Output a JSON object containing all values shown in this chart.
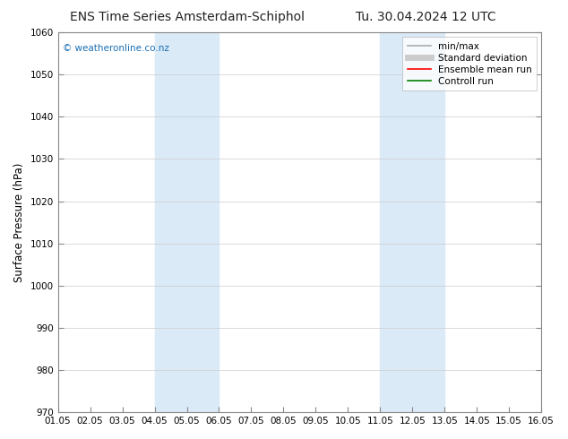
{
  "title_left": "ENS Time Series Amsterdam-Schiphol",
  "title_right": "Tu. 30.04.2024 12 UTC",
  "ylabel": "Surface Pressure (hPa)",
  "xlabel": "",
  "ylim": [
    970,
    1060
  ],
  "yticks": [
    970,
    980,
    990,
    1000,
    1010,
    1020,
    1030,
    1040,
    1050,
    1060
  ],
  "xtick_labels": [
    "01.05",
    "02.05",
    "03.05",
    "04.05",
    "05.05",
    "06.05",
    "07.05",
    "08.05",
    "09.05",
    "10.05",
    "11.05",
    "12.05",
    "13.05",
    "14.05",
    "15.05",
    "16.05"
  ],
  "shaded_regions": [
    {
      "xstart": 3,
      "xend": 5,
      "color": "#daeaf7"
    },
    {
      "xstart": 10,
      "xend": 12,
      "color": "#daeaf7"
    }
  ],
  "watermark": "© weatheronline.co.nz",
  "watermark_color": "#1a6fb5",
  "legend_entries": [
    {
      "label": "min/max",
      "color": "#aaaaaa",
      "lw": 1.2,
      "style": "solid"
    },
    {
      "label": "Standard deviation",
      "color": "#cccccc",
      "lw": 5,
      "style": "solid"
    },
    {
      "label": "Ensemble mean run",
      "color": "red",
      "lw": 1.2,
      "style": "solid"
    },
    {
      "label": "Controll run",
      "color": "green",
      "lw": 1.2,
      "style": "solid"
    }
  ],
  "bg_color": "#ffffff",
  "grid_color": "#cccccc",
  "title_fontsize": 10,
  "tick_fontsize": 7.5,
  "ylabel_fontsize": 8.5,
  "legend_fontsize": 7.5
}
